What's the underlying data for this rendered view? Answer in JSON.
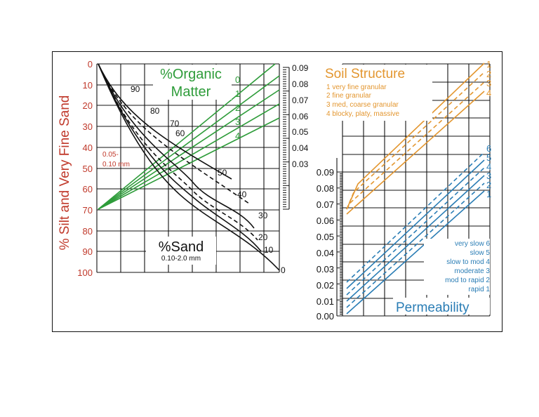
{
  "left_nomogram": {
    "silt_axis": {
      "title": "% Silt and Very Fine Sand",
      "ticks": [
        "0",
        "10",
        "20",
        "30",
        "40",
        "50",
        "60",
        "70",
        "80",
        "90",
        "100"
      ],
      "color": "#c0392b"
    },
    "silt_range_note": [
      "0.05-",
      "0.10 mm"
    ],
    "organic_matter": {
      "title_lines": [
        "%Organic",
        "Matter"
      ],
      "line_labels": [
        "0",
        "1",
        "2",
        "3",
        "4"
      ],
      "color": "#2e9c3a"
    },
    "sand": {
      "title": "%Sand",
      "range": "0.10-2.0 mm",
      "curve_labels": [
        "90",
        "80",
        "70",
        "60",
        "50",
        "40",
        "30",
        "20",
        "10",
        "0"
      ]
    },
    "k_scale_1": [
      "0.09",
      "0.08",
      "0.07",
      "0.06",
      "0.05",
      "0.04",
      "0.03"
    ]
  },
  "right_nomogram": {
    "k_scale_2": [
      "0.09",
      "0.08",
      "0.07",
      "0.06",
      "0.05",
      "0.04",
      "0.03",
      "0.02",
      "0.01",
      "0.00"
    ],
    "soil_structure": {
      "title": "Soil Structure",
      "items": [
        "1 very fine granular",
        "2 fine granular",
        "3 med, coarse granular",
        "4 blocky, platy, massive"
      ],
      "line_labels": [
        "1",
        "2",
        "3",
        "4"
      ],
      "color": "#e3962f"
    },
    "permeability": {
      "title": "Permeability",
      "items": [
        "very slow 6",
        "slow 5",
        "slow to mod 4",
        "moderate 3",
        "mod to rapid 2",
        "rapid 1"
      ],
      "line_labels": [
        "6",
        "5",
        "4",
        "3",
        "2",
        "1"
      ],
      "color": "#2a7db5"
    }
  }
}
